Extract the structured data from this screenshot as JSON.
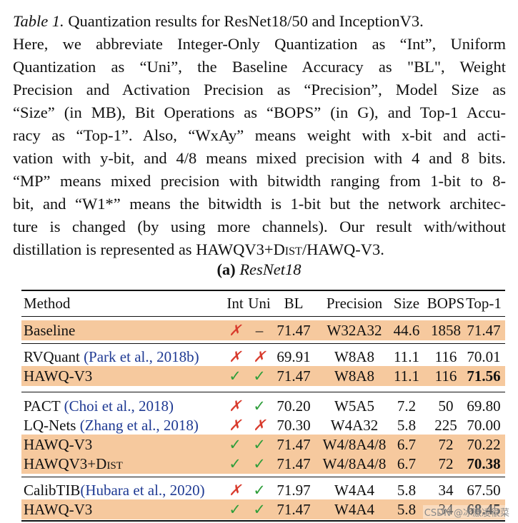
{
  "caption": {
    "label": "Table 1.",
    "lines": [
      " Quantization results for ResNet18/50 and InceptionV3.",
      "Here, we abbreviate Integer-Only Quantization as “Int”, Uniform",
      "Quantization as “Uni”, the Baseline Accuracy as \"BL\", Weight",
      "Precision and Activation Precision as “Precision”, Model Size as",
      "“Size” (in MB), Bit Operations as “BOPS” (in G), and Top-1 Accu-",
      "racy as “Top-1”.  Also, “WxAy” means weight with x-bit and acti-",
      "vation with y-bit, and 4/8 means mixed precision with 4 and 8 bits.",
      "“MP” means mixed precision with bitwidth ranging from 1-bit to 8-",
      "bit, and “W1*” means the bitwidth is 1-bit but the network architec-",
      "ture is changed (by using more channels). Our result with/without",
      "distillation is represented as HAWQV3+DIST/HAWQ-V3."
    ]
  },
  "subtitle": {
    "tag": "(a)",
    "name": "ResNet18"
  },
  "table": {
    "headers": {
      "method": "Method",
      "int": "Int",
      "uni": "Uni",
      "bl": "BL",
      "precision": "Precision",
      "size": "Size",
      "bops": "BOPS",
      "top1": "Top-1"
    },
    "marks": {
      "cross": "✗",
      "check": "✓",
      "dash": "–"
    },
    "rows": [
      {
        "method": "Baseline",
        "cite": "",
        "int": "✗",
        "uni": "–",
        "bl": "71.47",
        "precision": "W32A32",
        "size": "44.6",
        "bops": "1858",
        "top1": "71.47",
        "highlight": true,
        "bold_top1": false
      },
      {
        "method": "RVQuant ",
        "cite": "(Park et al., 2018b)",
        "int": "✗",
        "uni": "✗",
        "bl": "69.91",
        "precision": "W8A8",
        "size": "11.1",
        "bops": "116",
        "top1": "70.01",
        "highlight": false,
        "bold_top1": false
      },
      {
        "method": "HAWQ-V3",
        "cite": "",
        "int": "✓",
        "uni": "✓",
        "bl": "71.47",
        "precision": "W8A8",
        "size": "11.1",
        "bops": "116",
        "top1": "71.56",
        "highlight": true,
        "bold_top1": true
      },
      {
        "method": "PACT ",
        "cite": "(Choi et al., 2018)",
        "int": "✗",
        "uni": "✓",
        "bl": "70.20",
        "precision": "W5A5",
        "size": "7.2",
        "bops": "50",
        "top1": "69.80",
        "highlight": false,
        "bold_top1": false
      },
      {
        "method": "LQ-Nets ",
        "cite": "(Zhang et al., 2018)",
        "int": "✗",
        "uni": "✗",
        "bl": "70.30",
        "precision": "W4A32",
        "size": "5.8",
        "bops": "225",
        "top1": "70.00",
        "highlight": false,
        "bold_top1": false
      },
      {
        "method": "HAWQ-V3",
        "cite": "",
        "int": "✓",
        "uni": "✓",
        "bl": "71.47",
        "precision": "W4/8A4/8",
        "size": "6.7",
        "bops": "72",
        "top1": "70.22",
        "highlight": true,
        "bold_top1": false
      },
      {
        "method": "HAWQV3+DIST",
        "cite": "",
        "int": "✓",
        "uni": "✓",
        "bl": "71.47",
        "precision": "W4/8A4/8",
        "size": "6.7",
        "bops": "72",
        "top1": "70.38",
        "highlight": true,
        "bold_top1": true
      },
      {
        "method": "CalibTIB",
        "cite": "(Hubara et al., 2020)",
        "int": "✗",
        "uni": "✓",
        "bl": "71.97",
        "precision": "W4A4",
        "size": "5.8",
        "bops": "34",
        "top1": "67.50",
        "highlight": false,
        "bold_top1": false
      },
      {
        "method": "HAWQ-V3",
        "cite": "",
        "int": "✓",
        "uni": "✓",
        "bl": "71.47",
        "precision": "W4A4",
        "size": "5.8",
        "bops": "34",
        "top1": "68.45",
        "highlight": true,
        "bold_top1": true
      }
    ]
  },
  "watermark": "CSDN @冰激凌很菜",
  "colors": {
    "highlight": "#f6c99e",
    "cross": "#d83a2c",
    "check": "#2e9e3a",
    "cite": "#1f3a93"
  }
}
